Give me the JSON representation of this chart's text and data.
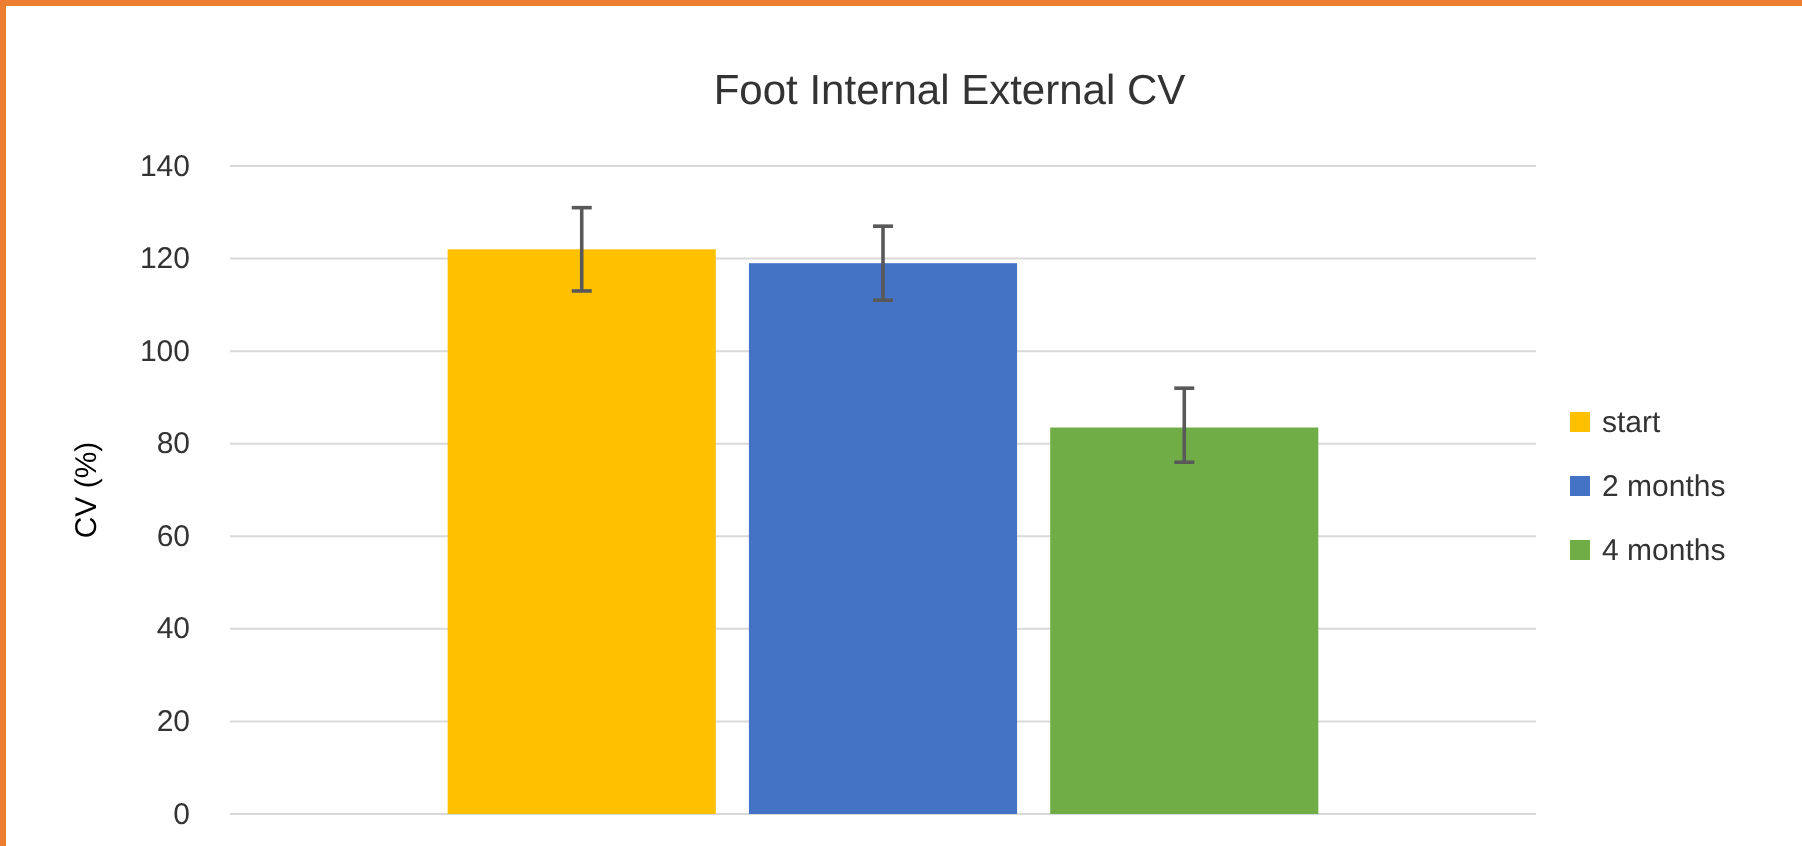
{
  "chart_data": {
    "type": "bar",
    "title": "Foot Internal External CV",
    "ylabel": "CV (%)",
    "categories": [
      null
    ],
    "series": [
      {
        "name": "start",
        "color": "#ffc000",
        "values": [
          122
        ],
        "errors": [
          [
            113,
            131
          ]
        ]
      },
      {
        "name": "2 months",
        "color": "#4472c4",
        "values": [
          119
        ],
        "errors": [
          [
            111,
            127
          ]
        ]
      },
      {
        "name": "4 months",
        "color": "#70ad47",
        "values": [
          83.5
        ],
        "errors": [
          [
            76,
            92
          ]
        ]
      }
    ],
    "ylim": [
      0,
      140
    ],
    "yticks": [
      0,
      20,
      40,
      60,
      80,
      100,
      120,
      140
    ],
    "grid": "y",
    "legend": "right"
  }
}
